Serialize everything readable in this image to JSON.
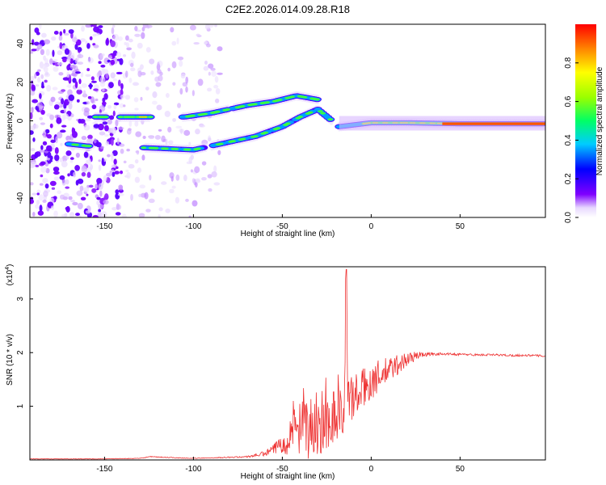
{
  "title": "C2E2.2026.014.09.28.R18",
  "chart_data": [
    {
      "type": "heatmap",
      "xlabel": "Height of straight line (km)",
      "ylabel": "Frequency (Hz)",
      "xlim": [
        -192,
        98
      ],
      "ylim": [
        -50,
        50
      ],
      "xticks": [
        -150,
        -100,
        -50,
        0,
        50
      ],
      "yticks": [
        -40,
        -20,
        0,
        20,
        40
      ],
      "colorbar": {
        "label": "Normalized spectral amplitude",
        "range": [
          0,
          1
        ],
        "ticks": [
          "0.0",
          "0.2",
          "0.4",
          "0.6",
          "0.8"
        ]
      },
      "features": [
        {
          "name": "noise",
          "x_range": [
            -192,
            -95
          ],
          "freq_range": [
            -50,
            50
          ]
        },
        {
          "name": "upper-branch",
          "points": [
            [
              -155,
              2
            ],
            [
              -130,
              2
            ],
            [
              -105,
              2
            ],
            [
              -90,
              4
            ],
            [
              -70,
              8
            ],
            [
              -55,
              10
            ],
            [
              -42,
              13
            ],
            [
              -30,
              11
            ]
          ]
        },
        {
          "name": "lower-branch",
          "points": [
            [
              -170,
              -12
            ],
            [
              -160,
              -13
            ],
            [
              -125,
              -14
            ],
            [
              -100,
              -15
            ],
            [
              -85,
              -12
            ],
            [
              -65,
              -8
            ],
            [
              -50,
              -3
            ],
            [
              -40,
              2
            ],
            [
              -30,
              6
            ],
            [
              -22,
              0
            ]
          ]
        },
        {
          "name": "carrier",
          "points": [
            [
              -18,
              -3
            ],
            [
              0,
              -1
            ],
            [
              20,
              -1
            ],
            [
              50,
              -1.5
            ],
            [
              98,
              -1.5
            ]
          ]
        }
      ]
    },
    {
      "type": "line",
      "xlabel": "Height of straight line (km)",
      "ylabel": "SNR (10 * v/v)",
      "scale_label": "(x10",
      "scale_exp": "4",
      "xlim": [
        -192,
        98
      ],
      "ylim": [
        0,
        3.6
      ],
      "xticks": [
        -150,
        -100,
        -50,
        0,
        50
      ],
      "yticks": [
        1,
        2,
        3
      ],
      "series": [
        {
          "name": "SNR",
          "color": "#ee3333",
          "x": [
            -192,
            -150,
            -130,
            -125,
            -100,
            -80,
            -70,
            -60,
            -55,
            -50,
            -45,
            -40,
            -35,
            -30,
            -25,
            -20,
            -15,
            -14,
            -13,
            -10,
            -5,
            0,
            5,
            10,
            15,
            20,
            25,
            30,
            40,
            50,
            60,
            70,
            80,
            90,
            98
          ],
          "values": [
            0.02,
            0.02,
            0.03,
            0.06,
            0.03,
            0.05,
            0.06,
            0.12,
            0.2,
            0.35,
            0.5,
            0.6,
            0.65,
            0.7,
            0.8,
            0.9,
            1.0,
            3.55,
            1.1,
            1.2,
            1.35,
            1.5,
            1.6,
            1.7,
            1.8,
            1.88,
            1.95,
            1.97,
            1.98,
            1.97,
            1.96,
            1.96,
            1.95,
            1.95,
            1.94
          ],
          "noise": [
            0.005,
            0.005,
            0.005,
            0.01,
            0.005,
            0.01,
            0.015,
            0.05,
            0.1,
            0.2,
            0.4,
            0.55,
            0.6,
            0.6,
            0.6,
            0.55,
            0.5,
            0.5,
            0.5,
            0.45,
            0.4,
            0.35,
            0.3,
            0.25,
            0.2,
            0.15,
            0.08,
            0.04,
            0.02,
            0.02,
            0.02,
            0.02,
            0.02,
            0.02,
            0.02
          ]
        }
      ]
    }
  ]
}
